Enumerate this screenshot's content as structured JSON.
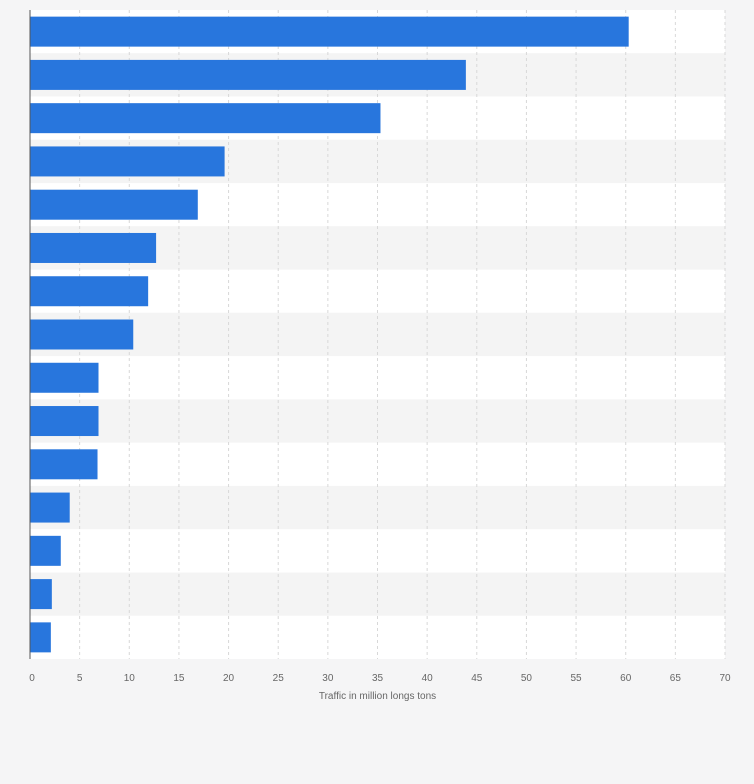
{
  "chart_data": {
    "type": "bar",
    "orientation": "horizontal",
    "title": "",
    "xlabel": "Traffic in million longs tons",
    "ylabel": "",
    "categories": [
      "",
      "",
      "",
      "",
      "",
      "",
      "",
      "",
      "",
      "",
      "",
      "",
      "",
      "",
      ""
    ],
    "values": [
      60.3,
      43.9,
      35.3,
      19.6,
      16.9,
      12.7,
      11.9,
      10.4,
      6.9,
      6.9,
      6.8,
      4.0,
      3.1,
      2.2,
      2.1
    ],
    "xlim": [
      0,
      70
    ],
    "xticks": [
      "0",
      "5",
      "10",
      "15",
      "20",
      "25",
      "30",
      "35",
      "40",
      "45",
      "50",
      "55",
      "60",
      "65",
      "70"
    ],
    "grid": true,
    "bar_color": "#2876dd",
    "band_colors": [
      "#ffffff",
      "#f4f4f4"
    ],
    "grid_color": "#d8d8d8",
    "axis_color": "#555555",
    "tick_label_color": "#666666"
  }
}
